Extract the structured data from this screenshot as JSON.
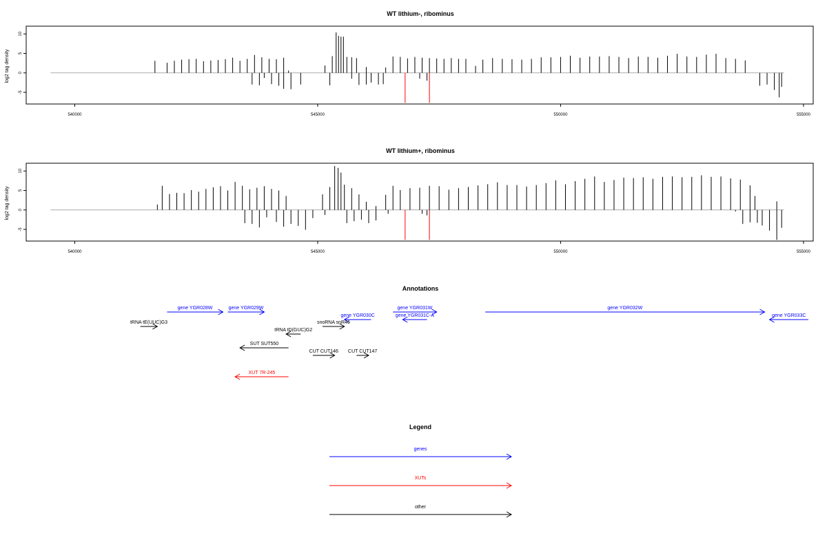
{
  "chart_data": [
    {
      "type": "bar",
      "title": "WT lithium-, ribominus",
      "ylabel": "log2 tag density",
      "xlim": [
        539000,
        555200
      ],
      "ylim": [
        -8,
        12
      ],
      "x_ticks": [
        "540000",
        "545000",
        "550000",
        "555000"
      ],
      "x_tick_values": [
        540000,
        545000,
        550000,
        555000
      ],
      "y_ticks": [
        "10",
        "5",
        "0",
        "-5"
      ],
      "y_tick_values": [
        10,
        5,
        0,
        -5
      ],
      "baseline_range": [
        539500,
        554600
      ],
      "series": [
        {
          "color": "#000000",
          "values": [
            [
              541650,
              3.1
            ],
            [
              541900,
              2.6
            ],
            [
              542050,
              3.1
            ],
            [
              542200,
              3.4
            ],
            [
              542350,
              3.5
            ],
            [
              542500,
              3.6
            ],
            [
              542650,
              3.0
            ],
            [
              542800,
              3.2
            ],
            [
              542950,
              3.3
            ],
            [
              543100,
              3.5
            ],
            [
              543250,
              3.9
            ],
            [
              543400,
              3.1
            ],
            [
              543550,
              3.6
            ],
            [
              543700,
              4.6
            ],
            [
              543850,
              4.0
            ],
            [
              544000,
              3.6
            ],
            [
              544150,
              3.5
            ],
            [
              544300,
              3.9
            ],
            [
              544400,
              0.6
            ],
            [
              545150,
              1.9
            ],
            [
              545300,
              4.3
            ],
            [
              545380,
              10.4
            ],
            [
              545430,
              9.5
            ],
            [
              545480,
              9.3
            ],
            [
              545530,
              9.3
            ],
            [
              545600,
              4.1
            ],
            [
              545700,
              4.0
            ],
            [
              545800,
              3.8
            ],
            [
              546000,
              1.5
            ],
            [
              546400,
              1.4
            ],
            [
              546550,
              4.2
            ],
            [
              546700,
              4.1
            ],
            [
              546850,
              3.7
            ],
            [
              547000,
              4.1
            ],
            [
              547150,
              3.9
            ],
            [
              547300,
              3.8
            ],
            [
              547450,
              3.7
            ],
            [
              547600,
              3.6
            ],
            [
              547750,
              3.8
            ],
            [
              547900,
              3.6
            ],
            [
              548050,
              3.6
            ],
            [
              548250,
              1.8
            ],
            [
              548400,
              3.4
            ],
            [
              548600,
              3.8
            ],
            [
              548800,
              3.6
            ],
            [
              549000,
              3.5
            ],
            [
              549200,
              3.4
            ],
            [
              549400,
              3.6
            ],
            [
              549600,
              4.0
            ],
            [
              549800,
              4.0
            ],
            [
              550000,
              4.1
            ],
            [
              550200,
              4.4
            ],
            [
              550400,
              3.9
            ],
            [
              550600,
              4.2
            ],
            [
              550800,
              4.2
            ],
            [
              551000,
              4.3
            ],
            [
              551200,
              4.1
            ],
            [
              551400,
              3.8
            ],
            [
              551600,
              4.2
            ],
            [
              551800,
              4.1
            ],
            [
              552000,
              3.9
            ],
            [
              552200,
              4.4
            ],
            [
              552400,
              4.9
            ],
            [
              552600,
              4.2
            ],
            [
              552800,
              4.1
            ],
            [
              553000,
              4.7
            ],
            [
              553200,
              4.9
            ],
            [
              553400,
              3.8
            ],
            [
              553600,
              3.6
            ],
            [
              553800,
              3.2
            ],
            [
              543650,
              -3.0
            ],
            [
              543800,
              -3.2
            ],
            [
              543900,
              -1.3
            ],
            [
              544050,
              -2.9
            ],
            [
              544200,
              -3.3
            ],
            [
              544300,
              -4.1
            ],
            [
              544450,
              -4.2
            ],
            [
              544650,
              -3.0
            ],
            [
              545250,
              -3.2
            ],
            [
              545700,
              -1.5
            ],
            [
              545850,
              -3.1
            ],
            [
              546000,
              -3.0
            ],
            [
              546100,
              -2.5
            ],
            [
              546250,
              -3.0
            ],
            [
              546350,
              -2.9
            ],
            [
              547100,
              -1.5
            ],
            [
              547250,
              -2.0
            ],
            [
              554100,
              -3.3
            ],
            [
              554250,
              -3.0
            ],
            [
              554400,
              -4.4
            ],
            [
              554500,
              -6.3
            ],
            [
              554550,
              -3.6
            ]
          ]
        },
        {
          "color": "#ff0000",
          "values": [
            [
              546800,
              -7.7
            ],
            [
              547300,
              -7.7
            ]
          ]
        }
      ]
    },
    {
      "type": "bar",
      "title": "WT lithium+, ribominus",
      "ylabel": "log2 tag density",
      "xlim": [
        539000,
        555200
      ],
      "ylim": [
        -8,
        12
      ],
      "x_ticks": [
        "540000",
        "545000",
        "550000",
        "555000"
      ],
      "x_tick_values": [
        540000,
        545000,
        550000,
        555000
      ],
      "y_ticks": [
        "10",
        "5",
        "0",
        "-5"
      ],
      "y_tick_values": [
        10,
        5,
        0,
        -5
      ],
      "baseline_range": [
        539500,
        554600
      ],
      "series": [
        {
          "color": "#000000",
          "values": [
            [
              541700,
              1.4
            ],
            [
              541800,
              6.2
            ],
            [
              541950,
              4.1
            ],
            [
              542100,
              4.4
            ],
            [
              542250,
              4.3
            ],
            [
              542400,
              5.1
            ],
            [
              542550,
              4.7
            ],
            [
              542700,
              5.4
            ],
            [
              542850,
              5.8
            ],
            [
              543000,
              6.1
            ],
            [
              543150,
              5.0
            ],
            [
              543300,
              7.2
            ],
            [
              543450,
              6.2
            ],
            [
              543600,
              5.3
            ],
            [
              543750,
              5.7
            ],
            [
              543900,
              6.1
            ],
            [
              544050,
              5.4
            ],
            [
              544200,
              5.0
            ],
            [
              544350,
              3.6
            ],
            [
              545100,
              4.0
            ],
            [
              545250,
              5.9
            ],
            [
              545350,
              11.3
            ],
            [
              545420,
              10.8
            ],
            [
              545480,
              9.6
            ],
            [
              545550,
              6.5
            ],
            [
              545700,
              5.6
            ],
            [
              545850,
              4.0
            ],
            [
              546000,
              2.1
            ],
            [
              546200,
              1.0
            ],
            [
              546400,
              3.9
            ],
            [
              546550,
              6.2
            ],
            [
              546700,
              5.1
            ],
            [
              546900,
              5.6
            ],
            [
              547100,
              5.7
            ],
            [
              547300,
              6.2
            ],
            [
              547500,
              6.1
            ],
            [
              547700,
              5.2
            ],
            [
              547900,
              5.6
            ],
            [
              548100,
              5.9
            ],
            [
              548300,
              6.3
            ],
            [
              548500,
              6.6
            ],
            [
              548700,
              7.1
            ],
            [
              548900,
              6.4
            ],
            [
              549100,
              6.4
            ],
            [
              549300,
              6.0
            ],
            [
              549500,
              6.4
            ],
            [
              549700,
              6.9
            ],
            [
              549900,
              7.6
            ],
            [
              550100,
              6.6
            ],
            [
              550300,
              7.4
            ],
            [
              550500,
              8.0
            ],
            [
              550700,
              8.6
            ],
            [
              550900,
              7.2
            ],
            [
              551100,
              7.7
            ],
            [
              551300,
              8.3
            ],
            [
              551500,
              8.2
            ],
            [
              551700,
              8.4
            ],
            [
              551900,
              8.0
            ],
            [
              552100,
              8.5
            ],
            [
              552300,
              8.6
            ],
            [
              552500,
              8.4
            ],
            [
              552700,
              8.5
            ],
            [
              552900,
              8.9
            ],
            [
              553100,
              8.5
            ],
            [
              553300,
              8.6
            ],
            [
              553500,
              8.1
            ],
            [
              553700,
              7.8
            ],
            [
              553900,
              6.3
            ],
            [
              554000,
              3.6
            ],
            [
              554450,
              2.2
            ],
            [
              543500,
              -3.4
            ],
            [
              543650,
              -3.6
            ],
            [
              543800,
              -4.5
            ],
            [
              543950,
              -1.9
            ],
            [
              544150,
              -3.1
            ],
            [
              544300,
              -4.3
            ],
            [
              544450,
              -3.6
            ],
            [
              544600,
              -4.1
            ],
            [
              544750,
              -5.1
            ],
            [
              544900,
              -2.1
            ],
            [
              545150,
              -1.3
            ],
            [
              545600,
              -3.4
            ],
            [
              545750,
              -2.9
            ],
            [
              545900,
              -2.5
            ],
            [
              546050,
              -3.4
            ],
            [
              546200,
              -2.7
            ],
            [
              546450,
              -1.0
            ],
            [
              547150,
              -1.0
            ],
            [
              547250,
              -1.4
            ],
            [
              553600,
              -0.4
            ],
            [
              553750,
              -3.6
            ],
            [
              553900,
              -3.2
            ],
            [
              554050,
              -3.3
            ],
            [
              554150,
              -4.0
            ],
            [
              554300,
              -5.3
            ],
            [
              554450,
              -7.7
            ],
            [
              554550,
              -4.6
            ]
          ]
        },
        {
          "color": "#ff0000",
          "values": [
            [
              546800,
              -7.7
            ],
            [
              547300,
              -7.7
            ]
          ]
        }
      ]
    }
  ],
  "annotations": {
    "title": "Annotations",
    "xlim": [
      539000,
      555200
    ],
    "features": [
      {
        "label": "gene YGR028W",
        "color": "#0000ff",
        "start": 541900,
        "end": 543050,
        "row": 0,
        "dir": "right"
      },
      {
        "label": "gene YGR029W",
        "color": "#0000ff",
        "start": 543150,
        "end": 543900,
        "row": 0,
        "dir": "right"
      },
      {
        "label": "gene YGR031W",
        "color": "#0000ff",
        "start": 546550,
        "end": 547450,
        "row": 0,
        "dir": "right"
      },
      {
        "label": "gene YGR032W",
        "color": "#0000ff",
        "start": 548450,
        "end": 554200,
        "row": 0,
        "dir": "right"
      },
      {
        "label": "gene YGR030C",
        "color": "#0000ff",
        "start": 545550,
        "end": 546100,
        "row": 1,
        "dir": "left"
      },
      {
        "label": "gene YGR031C-A",
        "color": "#0000ff",
        "start": 546750,
        "end": 547250,
        "row": 1,
        "dir": "left"
      },
      {
        "label": "gene YGR033C",
        "color": "#0000ff",
        "start": 554300,
        "end": 555100,
        "row": 1,
        "dir": "left"
      },
      {
        "label": "tRNA tE(UUC)G3",
        "color": "#000000",
        "start": 541350,
        "end": 541700,
        "row": 2,
        "dir": "right"
      },
      {
        "label": "snoRNA snR46",
        "color": "#000000",
        "start": 545100,
        "end": 545550,
        "row": 2,
        "dir": "right"
      },
      {
        "label": "tRNA tD(GUC)G2",
        "color": "#000000",
        "start": 544350,
        "end": 544650,
        "row": 3,
        "dir": "left"
      },
      {
        "label": "SUT SUT550",
        "color": "#000000",
        "start": 543400,
        "end": 544400,
        "row": 4,
        "dir": "left"
      },
      {
        "label": "CUT CUT146",
        "color": "#000000",
        "start": 544900,
        "end": 545350,
        "row": 5,
        "dir": "right"
      },
      {
        "label": "CUT CUT147",
        "color": "#000000",
        "start": 545800,
        "end": 546050,
        "row": 5,
        "dir": "right"
      },
      {
        "label": "XUT 7R-245",
        "color": "#ff0000",
        "start": 543300,
        "end": 544400,
        "row": 6,
        "dir": "left"
      }
    ]
  },
  "legend": {
    "title": "Legend",
    "items": [
      {
        "label": "genes",
        "color": "#0000ff"
      },
      {
        "label": "XUTs",
        "color": "#ff0000"
      },
      {
        "label": "other",
        "color": "#000000"
      }
    ]
  }
}
